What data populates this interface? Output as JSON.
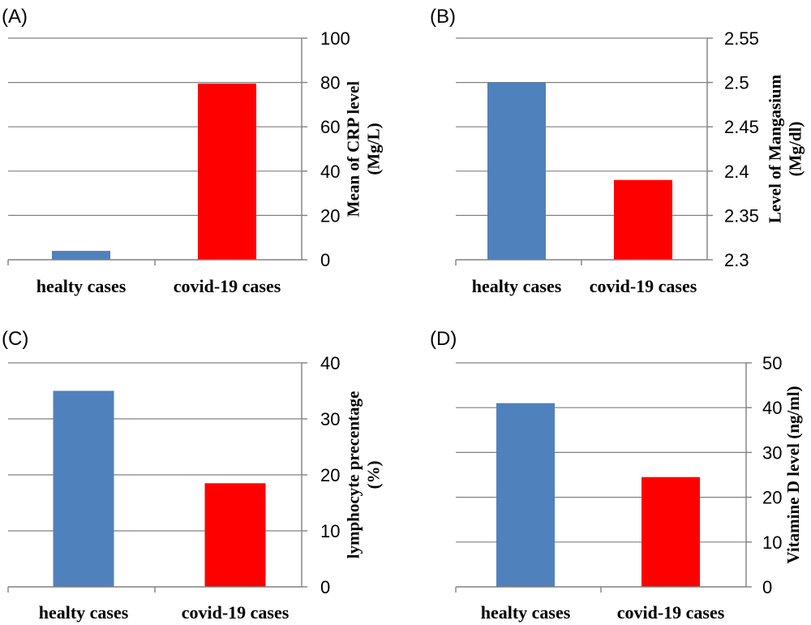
{
  "colors": {
    "healty": "#4F81BD",
    "covid": "#FF0000",
    "grid": "#808080"
  },
  "chart_data": [
    {
      "panel": "(A)",
      "type": "bar",
      "categories": [
        "healty cases",
        "covid-19 cases"
      ],
      "values": [
        4,
        79.5
      ],
      "ylabel_lines": [
        "Mean of CRP level",
        "(Mg/L)"
      ],
      "ylim": [
        0,
        100
      ],
      "yticks": [
        "0",
        "20",
        "40",
        "60",
        "80",
        "100"
      ],
      "grid": true,
      "y_axis_side": "right"
    },
    {
      "panel": "(B)",
      "type": "bar",
      "categories": [
        "healty cases",
        "covid-19 cases"
      ],
      "values": [
        2.5,
        2.39
      ],
      "ylabel_lines": [
        "Level of Mangasium",
        "(Mg/dl)"
      ],
      "ylim": [
        2.3,
        2.55
      ],
      "yticks": [
        "2.3",
        "2.35",
        "2.4",
        "2.45",
        "2.5",
        "2.55"
      ],
      "grid": true,
      "y_axis_side": "right"
    },
    {
      "panel": "(C)",
      "type": "bar",
      "categories": [
        "healty cases",
        "covid-19 cases"
      ],
      "values": [
        35,
        18.5
      ],
      "ylabel_lines": [
        "lymphocyte precentage",
        "(%)"
      ],
      "ylim": [
        0,
        40
      ],
      "yticks": [
        "0",
        "10",
        "20",
        "30",
        "40"
      ],
      "grid": true,
      "y_axis_side": "right"
    },
    {
      "panel": "(D)",
      "type": "bar",
      "categories": [
        "healty cases",
        "covid-19 cases"
      ],
      "values": [
        41,
        24.5
      ],
      "ylabel_lines": [
        "Vitamine D level (ng/ml)"
      ],
      "ylim": [
        0,
        50
      ],
      "yticks": [
        "0",
        "10",
        "20",
        "30",
        "40",
        "50"
      ],
      "grid": true,
      "y_axis_side": "right"
    }
  ]
}
